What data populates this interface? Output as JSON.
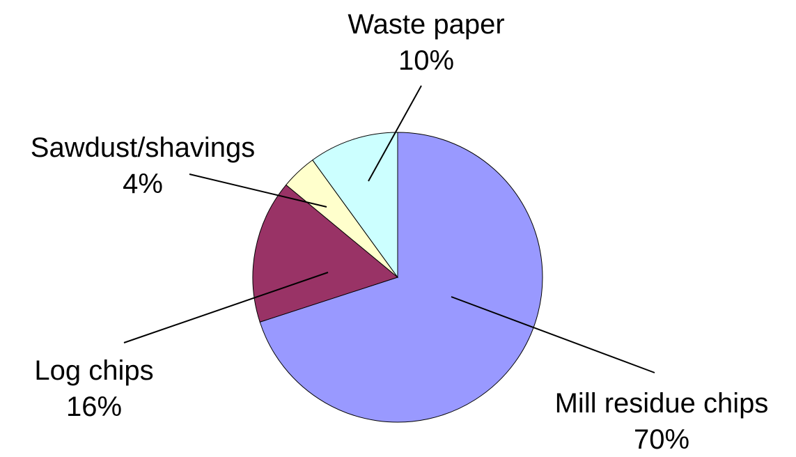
{
  "chart_data": {
    "type": "pie",
    "categories": [
      "Mill residue chips",
      "Log chips",
      "Sawdust/shavings",
      "Waste paper"
    ],
    "values": [
      70,
      16,
      4,
      10
    ],
    "value_labels": [
      "70%",
      "16%",
      "4%",
      "10%"
    ],
    "colors": [
      "#9999ff",
      "#993366",
      "#ffffcc",
      "#ccffff"
    ],
    "start_angle_deg": 0,
    "direction": "clockwise",
    "legend": "none",
    "data_labels": "outside with leader lines"
  }
}
